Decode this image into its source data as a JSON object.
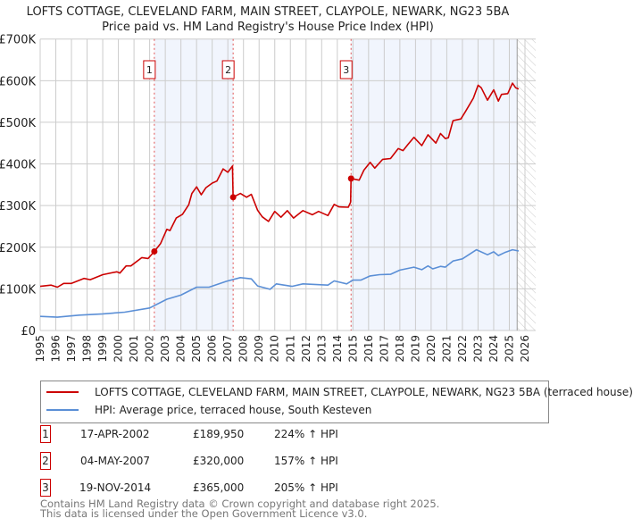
{
  "chart_data": {
    "type": "line",
    "title": "LOFTS COTTAGE, CLEVELAND FARM, MAIN STREET, CLAYPOLE, NEWARK, NG23 5BA",
    "subtitle": "Price paid vs. HM Land Registry's House Price Index (HPI)",
    "xlim": [
      1995,
      2026
    ],
    "ylim": [
      0,
      700000
    ],
    "x_ticks": [
      "1995",
      "1996",
      "1997",
      "1998",
      "1999",
      "2000",
      "2001",
      "2002",
      "2003",
      "2004",
      "2005",
      "2006",
      "2007",
      "2008",
      "2009",
      "2010",
      "2011",
      "2012",
      "2013",
      "2014",
      "2015",
      "2016",
      "2017",
      "2018",
      "2019",
      "2020",
      "2021",
      "2022",
      "2023",
      "2024",
      "2025",
      "2026"
    ],
    "y_ticks": [
      {
        "v": 0,
        "label": "£0"
      },
      {
        "v": 100000,
        "label": "£100K"
      },
      {
        "v": 200000,
        "label": "£200K"
      },
      {
        "v": 300000,
        "label": "£300K"
      },
      {
        "v": 400000,
        "label": "£400K"
      },
      {
        "v": 500000,
        "label": "£500K"
      },
      {
        "v": 600000,
        "label": "£600K"
      },
      {
        "v": 700000,
        "label": "£700K"
      }
    ],
    "grid": true,
    "shaded_ranges": [
      [
        2002.3,
        2007.34
      ],
      [
        2014.88,
        2025.5
      ]
    ],
    "future_hatch_from": 2025.5,
    "series": [
      {
        "name": "LOFTS COTTAGE, CLEVELAND FARM, MAIN STREET, CLAYPOLE, NEWARK, NG23 5BA (terraced house)",
        "color": "#cc0000",
        "points": [
          [
            1995.0,
            106000
          ],
          [
            1995.7,
            109000
          ],
          [
            1996.1,
            104000
          ],
          [
            1996.5,
            113000
          ],
          [
            1997.0,
            113000
          ],
          [
            1997.8,
            125000
          ],
          [
            1998.2,
            122000
          ],
          [
            1999.0,
            134000
          ],
          [
            1999.9,
            141000
          ],
          [
            2000.1,
            138000
          ],
          [
            2000.5,
            155000
          ],
          [
            2000.8,
            155000
          ],
          [
            2001.5,
            175000
          ],
          [
            2001.9,
            173000
          ],
          [
            2002.3,
            189950
          ],
          [
            2002.7,
            209000
          ],
          [
            2003.1,
            243000
          ],
          [
            2003.3,
            240000
          ],
          [
            2003.7,
            270000
          ],
          [
            2004.1,
            279000
          ],
          [
            2004.5,
            302000
          ],
          [
            2004.7,
            329000
          ],
          [
            2005.0,
            345000
          ],
          [
            2005.3,
            326000
          ],
          [
            2005.6,
            343000
          ],
          [
            2006.0,
            354000
          ],
          [
            2006.3,
            359000
          ],
          [
            2006.7,
            388000
          ],
          [
            2007.0,
            380000
          ],
          [
            2007.3,
            395000
          ],
          [
            2007.34,
            320000
          ],
          [
            2007.8,
            329000
          ],
          [
            2008.2,
            320000
          ],
          [
            2008.5,
            327000
          ],
          [
            2008.9,
            289000
          ],
          [
            2009.2,
            273000
          ],
          [
            2009.6,
            262000
          ],
          [
            2010.0,
            286000
          ],
          [
            2010.4,
            272000
          ],
          [
            2010.8,
            288000
          ],
          [
            2011.2,
            270000
          ],
          [
            2011.8,
            288000
          ],
          [
            2012.4,
            278000
          ],
          [
            2012.8,
            286000
          ],
          [
            2013.4,
            276000
          ],
          [
            2013.8,
            303000
          ],
          [
            2014.1,
            297000
          ],
          [
            2014.7,
            296000
          ],
          [
            2014.85,
            308000
          ],
          [
            2014.88,
            365000
          ],
          [
            2015.4,
            361000
          ],
          [
            2015.7,
            385000
          ],
          [
            2016.1,
            404000
          ],
          [
            2016.4,
            390000
          ],
          [
            2016.9,
            411000
          ],
          [
            2017.4,
            413000
          ],
          [
            2017.9,
            437000
          ],
          [
            2018.2,
            432000
          ],
          [
            2018.5,
            446000
          ],
          [
            2018.9,
            464000
          ],
          [
            2019.4,
            444000
          ],
          [
            2019.8,
            470000
          ],
          [
            2020.3,
            450000
          ],
          [
            2020.6,
            473000
          ],
          [
            2020.9,
            461000
          ],
          [
            2021.1,
            463000
          ],
          [
            2021.4,
            504000
          ],
          [
            2021.9,
            508000
          ],
          [
            2022.2,
            526000
          ],
          [
            2022.7,
            558000
          ],
          [
            2023.0,
            589000
          ],
          [
            2023.2,
            583000
          ],
          [
            2023.6,
            553000
          ],
          [
            2024.0,
            578000
          ],
          [
            2024.3,
            551000
          ],
          [
            2024.5,
            567000
          ],
          [
            2024.9,
            569000
          ],
          [
            2025.2,
            594000
          ],
          [
            2025.4,
            583000
          ],
          [
            2025.6,
            580000
          ]
        ]
      },
      {
        "name": "HPI: Average price, terraced house, South Kesteven",
        "color": "#5b8fd6",
        "points": [
          [
            1995.0,
            34000
          ],
          [
            1996.1,
            32000
          ],
          [
            1997.5,
            37000
          ],
          [
            1999.0,
            40000
          ],
          [
            2000.4,
            44000
          ],
          [
            2002.0,
            54000
          ],
          [
            2003.1,
            75000
          ],
          [
            2004.0,
            85000
          ],
          [
            2005.0,
            104000
          ],
          [
            2005.8,
            104000
          ],
          [
            2006.9,
            118000
          ],
          [
            2007.8,
            127000
          ],
          [
            2008.5,
            124000
          ],
          [
            2008.9,
            107000
          ],
          [
            2009.7,
            99000
          ],
          [
            2010.1,
            112000
          ],
          [
            2011.1,
            106000
          ],
          [
            2011.8,
            112000
          ],
          [
            2013.4,
            109000
          ],
          [
            2013.8,
            119000
          ],
          [
            2014.6,
            112000
          ],
          [
            2015.0,
            121000
          ],
          [
            2015.5,
            121000
          ],
          [
            2016.1,
            131000
          ],
          [
            2016.7,
            134000
          ],
          [
            2017.4,
            135000
          ],
          [
            2018.0,
            145000
          ],
          [
            2018.9,
            152000
          ],
          [
            2019.4,
            146000
          ],
          [
            2019.8,
            155000
          ],
          [
            2020.1,
            148000
          ],
          [
            2020.6,
            154000
          ],
          [
            2020.9,
            152000
          ],
          [
            2021.4,
            167000
          ],
          [
            2022.0,
            172000
          ],
          [
            2022.9,
            194000
          ],
          [
            2023.6,
            182000
          ],
          [
            2024.0,
            189000
          ],
          [
            2024.3,
            180000
          ],
          [
            2024.7,
            187000
          ],
          [
            2025.2,
            194000
          ],
          [
            2025.6,
            191000
          ]
        ]
      }
    ],
    "sales": [
      {
        "label": "1",
        "x": 2002.3,
        "price": 189950,
        "date": "17-APR-2002",
        "price_label": "£189,950",
        "hpi": "224% ↑ HPI"
      },
      {
        "label": "2",
        "x": 2007.34,
        "price": 320000,
        "date": "04-MAY-2007",
        "price_label": "£320,000",
        "hpi": "157% ↑ HPI"
      },
      {
        "label": "3",
        "x": 2014.88,
        "price": 365000,
        "date": "19-NOV-2014",
        "price_label": "£365,000",
        "hpi": "205% ↑ HPI"
      }
    ]
  },
  "legend": {
    "red": "LOFTS COTTAGE, CLEVELAND FARM, MAIN STREET, CLAYPOLE, NEWARK, NG23 5BA (terraced house)",
    "blue": "HPI: Average price, terraced house, South Kesteven"
  },
  "footer": {
    "line1": "Contains HM Land Registry data © Crown copyright and database right 2025.",
    "line2": "This data is licensed under the Open Government Licence v3.0."
  }
}
